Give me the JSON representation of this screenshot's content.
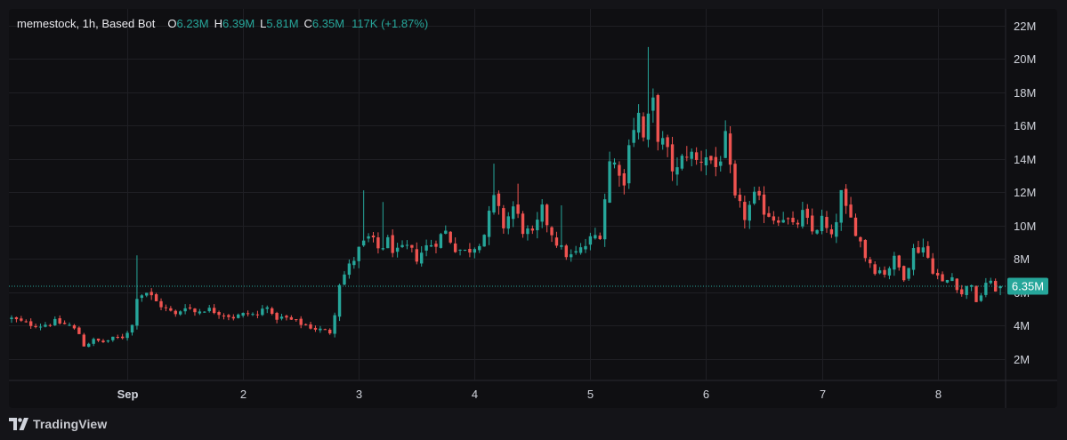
{
  "legend": {
    "symbol": "memestock, 1h, Based Bot",
    "open_key": "O",
    "open": "6.23M",
    "high_key": "H",
    "high": "6.39M",
    "low_key": "L",
    "low": "5.81M",
    "close_key": "C",
    "close": "6.35M",
    "change": "117K (+1.87%)"
  },
  "footer": {
    "brand": "TradingView",
    "logo": "tradingview-logo-icon"
  },
  "colors": {
    "up": "#26a69a",
    "down": "#ef5350",
    "background": "#0f0f12",
    "grid": "#1f1f24",
    "price_line": "#26a69a"
  },
  "chart_data": {
    "type": "candlestick",
    "interval": "1h",
    "y_unit": "M",
    "ylim": [
      0.7,
      22.8
    ],
    "y_ticks": [
      2,
      4,
      6,
      8,
      10,
      12,
      14,
      16,
      18,
      20,
      22
    ],
    "y_tick_labels": [
      "2M",
      "4M",
      "6M",
      "8M",
      "10M",
      "12M",
      "14M",
      "16M",
      "18M",
      "20M",
      "22M"
    ],
    "x_ticks": [
      {
        "label": "Sep",
        "index": 24,
        "bold": true
      },
      {
        "label": "2",
        "index": 48,
        "bold": false
      },
      {
        "label": "3",
        "index": 72,
        "bold": false
      },
      {
        "label": "4",
        "index": 96,
        "bold": false
      },
      {
        "label": "5",
        "index": 120,
        "bold": false
      },
      {
        "label": "6",
        "index": 144,
        "bold": false
      },
      {
        "label": "7",
        "index": 168,
        "bold": false
      },
      {
        "label": "8",
        "index": 192,
        "bold": false
      }
    ],
    "last_price": 6.35,
    "last_price_label": "6.35M",
    "gridlines": true,
    "close_path": [
      [
        0,
        4.4
      ],
      [
        3,
        4.1
      ],
      [
        6,
        4.0
      ],
      [
        9,
        4.2
      ],
      [
        12,
        4.0
      ],
      [
        14,
        3.5
      ],
      [
        15,
        2.8
      ],
      [
        17,
        3.1
      ],
      [
        19,
        3.0
      ],
      [
        21,
        3.2
      ],
      [
        23,
        3.3
      ],
      [
        25,
        4.0
      ],
      [
        26,
        5.8
      ],
      [
        28,
        6.0
      ],
      [
        30,
        5.4
      ],
      [
        32,
        5.0
      ],
      [
        34,
        4.6
      ],
      [
        36,
        5.2
      ],
      [
        38,
        4.8
      ],
      [
        40,
        5.0
      ],
      [
        43,
        4.8
      ],
      [
        46,
        4.5
      ],
      [
        49,
        4.7
      ],
      [
        51,
        4.6
      ],
      [
        53,
        5.3
      ],
      [
        54,
        4.5
      ],
      [
        57,
        4.4
      ],
      [
        60,
        4.1
      ],
      [
        63,
        3.8
      ],
      [
        66,
        3.6
      ],
      [
        67,
        4.8
      ],
      [
        68,
        6.6
      ],
      [
        70,
        7.5
      ],
      [
        72,
        8.5
      ],
      [
        74,
        9.2
      ],
      [
        76,
        8.6
      ],
      [
        78,
        9.0
      ],
      [
        80,
        8.3
      ],
      [
        82,
        8.6
      ],
      [
        84,
        8.1
      ],
      [
        86,
        8.7
      ],
      [
        88,
        9.1
      ],
      [
        90,
        9.6
      ],
      [
        92,
        8.7
      ],
      [
        94,
        8.4
      ],
      [
        96,
        8.8
      ],
      [
        98,
        9.5
      ],
      [
        100,
        11.5
      ],
      [
        102,
        10.0
      ],
      [
        104,
        11.1
      ],
      [
        106,
        9.8
      ],
      [
        108,
        9.3
      ],
      [
        110,
        10.8
      ],
      [
        112,
        9.6
      ],
      [
        114,
        8.5
      ],
      [
        116,
        8.1
      ],
      [
        118,
        8.5
      ],
      [
        120,
        9.1
      ],
      [
        122,
        9.6
      ],
      [
        124,
        13.8
      ],
      [
        126,
        13.5
      ],
      [
        127,
        12.3
      ],
      [
        128,
        15.4
      ],
      [
        130,
        16.6
      ],
      [
        131,
        15.2
      ],
      [
        133,
        17.2
      ],
      [
        134,
        15.5
      ],
      [
        136,
        14.2
      ],
      [
        137,
        13.5
      ],
      [
        138,
        13.2
      ],
      [
        140,
        14.5
      ],
      [
        142,
        13.8
      ],
      [
        144,
        14.3
      ],
      [
        146,
        13.5
      ],
      [
        148,
        15.0
      ],
      [
        149,
        13.1
      ],
      [
        150,
        11.4
      ],
      [
        152,
        10.6
      ],
      [
        154,
        11.6
      ],
      [
        156,
        11.0
      ],
      [
        158,
        10.5
      ],
      [
        160,
        10.6
      ],
      [
        162,
        9.8
      ],
      [
        164,
        10.6
      ],
      [
        166,
        9.6
      ],
      [
        168,
        10.3
      ],
      [
        170,
        9.1
      ],
      [
        172,
        11.8
      ],
      [
        173,
        10.8
      ],
      [
        175,
        9.8
      ],
      [
        177,
        8.2
      ],
      [
        179,
        7.4
      ],
      [
        181,
        7.2
      ],
      [
        183,
        7.9
      ],
      [
        185,
        7.0
      ],
      [
        187,
        8.5
      ],
      [
        189,
        8.7
      ],
      [
        191,
        7.4
      ],
      [
        193,
        6.5
      ],
      [
        195,
        6.9
      ],
      [
        197,
        5.9
      ],
      [
        199,
        6.6
      ],
      [
        200,
        5.2
      ],
      [
        202,
        6.6
      ],
      [
        204,
        6.23
      ],
      [
        205,
        6.35
      ]
    ]
  }
}
